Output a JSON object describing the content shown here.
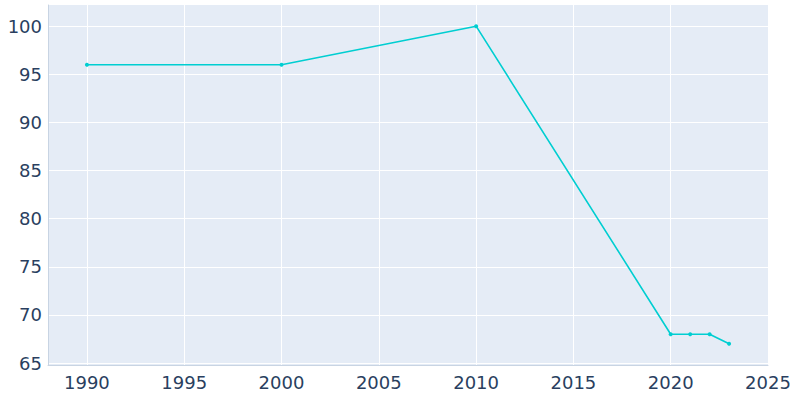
{
  "chart_data": {
    "type": "line",
    "x": [
      1990,
      2000,
      2010,
      2020,
      2021,
      2022,
      2023
    ],
    "values": [
      96,
      96,
      100,
      68,
      68,
      68,
      67
    ],
    "color": "#00ced1",
    "marker": "circle",
    "xlim": [
      1988,
      2025
    ],
    "xticks": [
      1990,
      1995,
      2000,
      2005,
      2010,
      2015,
      2020,
      2025
    ],
    "ylim": [
      64.8,
      102.2
    ],
    "yticks": [
      65,
      70,
      75,
      80,
      85,
      90,
      95,
      100
    ],
    "grid": true
  }
}
